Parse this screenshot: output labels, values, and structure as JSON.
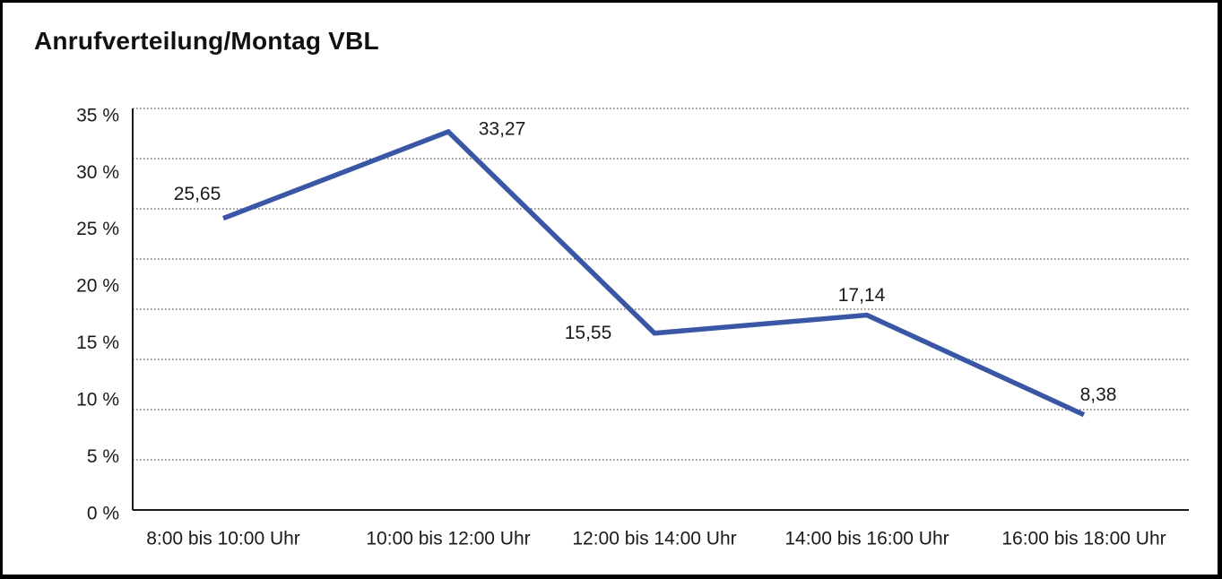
{
  "title": "Anrufverteilung/Montag VBL",
  "chart_data": {
    "type": "line",
    "title": "Anrufverteilung/Montag VBL",
    "categories": [
      "8:00 bis 10:00 Uhr",
      "10:00 bis 12:00 Uhr",
      "12:00 bis 14:00 Uhr",
      "14:00 bis 16:00 Uhr",
      "16:00 bis 18:00 Uhr"
    ],
    "series": [
      {
        "name": "Anrufverteilung Montag VBL",
        "values": [
          25.65,
          33.27,
          15.55,
          17.14,
          8.38
        ],
        "value_labels": [
          "25,65",
          "33,27",
          "15,55",
          "17,14",
          "8,38"
        ],
        "color": "#3A57A6"
      }
    ],
    "xlabel": "",
    "ylabel": "",
    "ylim": [
      0,
      35
    ],
    "ytick_step": 5,
    "ytick_labels": [
      "0 %",
      "5 %",
      "10 %",
      "15 %",
      "20 %",
      "25 %",
      "30 %",
      "35 %"
    ],
    "grid": "horizontal-dotted",
    "legend": "none",
    "colors": {
      "line": "#3A57A6",
      "axis": "#1a1a1a",
      "gridline": "#555555",
      "text": "#1a1a1a",
      "background": "#ffffff"
    }
  }
}
